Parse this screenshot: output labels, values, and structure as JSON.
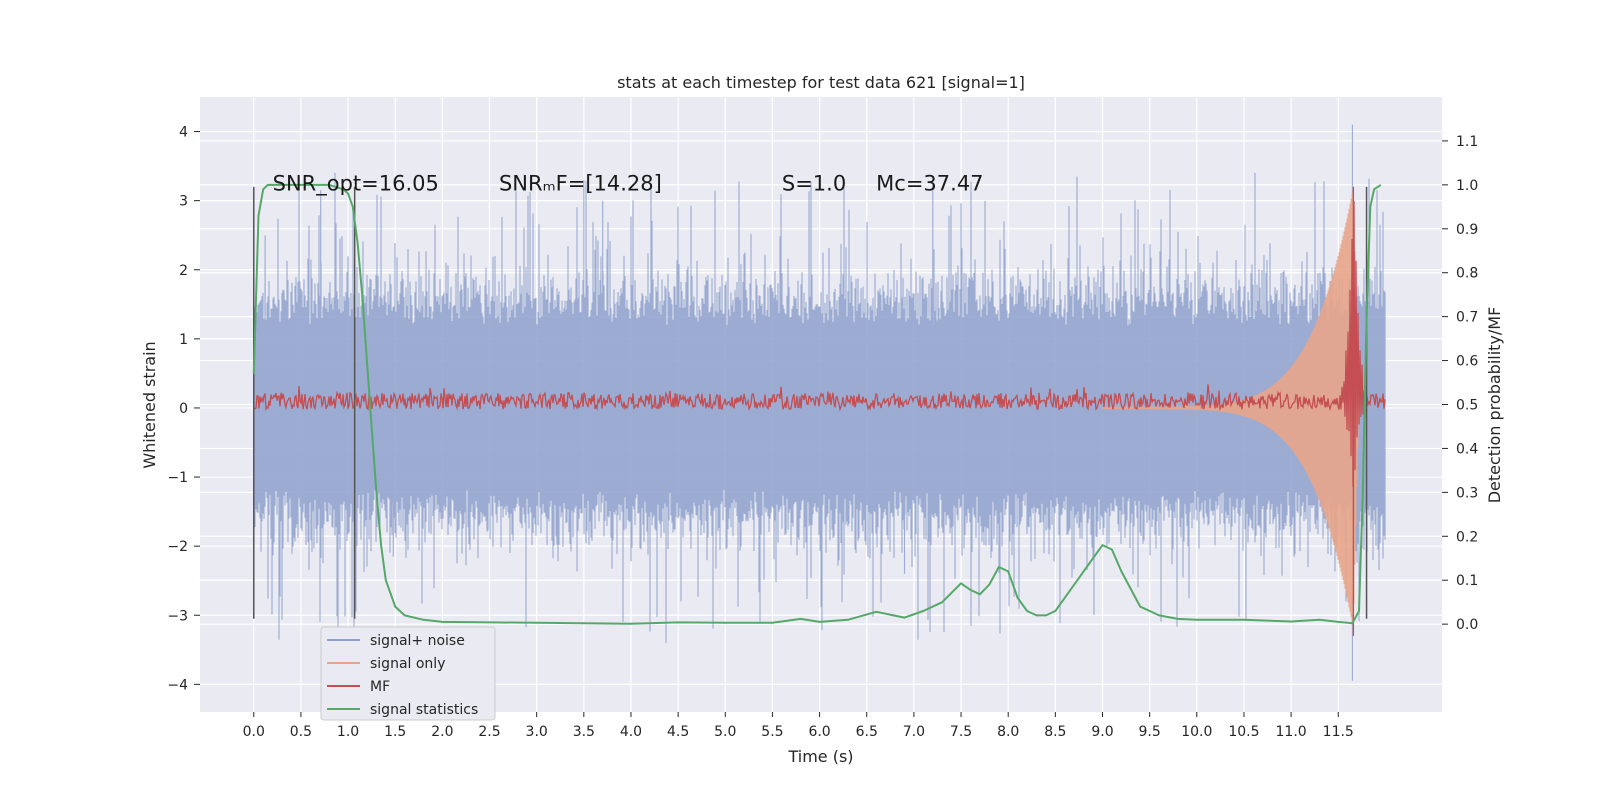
{
  "chart_data": {
    "type": "line",
    "title": "stats at each timestep for test data 621 [signal=1]",
    "xlabel": "Time (s)",
    "ylabel": "Whitened strain",
    "ylabel_right": "Detection probability/MF",
    "xlim": [
      -0.57,
      12.6
    ],
    "ylim": [
      -4.4,
      4.5
    ],
    "ylim_right": [
      -0.2,
      1.2
    ],
    "x_ticks": [
      0.0,
      0.5,
      1.0,
      1.5,
      2.0,
      2.5,
      3.0,
      3.5,
      4.0,
      4.5,
      5.0,
      5.5,
      6.0,
      6.5,
      7.0,
      7.5,
      8.0,
      8.5,
      9.0,
      9.5,
      10.0,
      10.5,
      11.0,
      11.5
    ],
    "x_tick_labels": [
      "0.0",
      "0.5",
      "1.0",
      "1.5",
      "2.0",
      "2.5",
      "3.0",
      "3.5",
      "4.0",
      "4.5",
      "5.0",
      "5.5",
      "6.0",
      "6.5",
      "7.0",
      "7.5",
      "8.0",
      "8.5",
      "9.0",
      "9.5",
      "10.0",
      "10.5",
      "11.0",
      "11.5"
    ],
    "y_ticks": [
      -4,
      -3,
      -2,
      -1,
      0,
      1,
      2,
      3,
      4
    ],
    "y_tick_labels": [
      "−4",
      "−3",
      "−2",
      "−1",
      "0",
      "1",
      "2",
      "3",
      "4"
    ],
    "y_right_ticks": [
      0.0,
      0.1,
      0.2,
      0.3,
      0.4,
      0.5,
      0.6,
      0.7,
      0.8,
      0.9,
      1.0,
      1.1
    ],
    "y_right_tick_labels": [
      "0.0",
      "0.1",
      "0.2",
      "0.3",
      "0.4",
      "0.5",
      "0.6",
      "0.7",
      "0.8",
      "0.9",
      "1.0",
      "1.1"
    ],
    "grid": true,
    "legend_position": "lower-left",
    "annotations": [
      {
        "text": "SNR_opt=16.05",
        "x": 0.2,
        "y": 3.15
      },
      {
        "text": "SNRₘF=[14.28]",
        "x": 2.6,
        "y": 3.15
      },
      {
        "text": "S=1.0",
        "x": 5.6,
        "y": 3.15
      },
      {
        "text": "Mᴄ=37.47",
        "x": 6.6,
        "y": 3.15
      }
    ],
    "vertical_markers": [
      {
        "x": 0.0,
        "ymin": -3.05,
        "ymax": 3.2
      },
      {
        "x": 1.07,
        "ymin": -3.05,
        "ymax": 3.2
      },
      {
        "x": 11.8,
        "ymin": -3.05,
        "ymax": 3.2
      }
    ],
    "series": [
      {
        "name": "signal+ noise",
        "color": "#8da0cb",
        "x_range": [
          0.0,
          12.0
        ],
        "core_amplitude": 1.3,
        "peak_amplitude": 3.4,
        "extreme_points": [
          [
            0.12,
            2.5
          ],
          [
            0.71,
            3.15
          ],
          [
            1.48,
            -2.15
          ],
          [
            3.5,
            3.3
          ],
          [
            3.7,
            3.0
          ],
          [
            6.9,
            -2.4
          ],
          [
            7.2,
            3.3
          ],
          [
            8.73,
            3.35
          ],
          [
            11.65,
            4.1
          ],
          [
            11.65,
            -3.95
          ]
        ]
      },
      {
        "name": "signal only",
        "color": "#e8a58a",
        "x_range": [
          9.0,
          11.72
        ],
        "amplitude_start": 0.02,
        "amplitude_peak": 3.2,
        "peak_x": 11.66
      },
      {
        "name": "MF",
        "color": "#c44e52",
        "x_range": [
          0.0,
          12.0
        ],
        "baseline": 0.1,
        "noise_amplitude": 0.12,
        "peak_x": 11.66,
        "peak_value": 3.2,
        "min_value": -3.3
      },
      {
        "name": "signal statistics",
        "color": "#55a868",
        "axis": "right",
        "x": [
          0.0,
          0.05,
          0.1,
          0.15,
          0.25,
          0.4,
          0.6,
          0.8,
          0.95,
          1.0,
          1.05,
          1.1,
          1.15,
          1.2,
          1.25,
          1.3,
          1.35,
          1.4,
          1.5,
          1.6,
          1.8,
          2.0,
          2.5,
          3.0,
          3.5,
          4.0,
          4.5,
          5.0,
          5.5,
          5.8,
          6.0,
          6.3,
          6.6,
          6.9,
          7.1,
          7.3,
          7.5,
          7.6,
          7.7,
          7.8,
          7.9,
          8.0,
          8.1,
          8.2,
          8.3,
          8.4,
          8.5,
          8.6,
          8.8,
          9.0,
          9.1,
          9.2,
          9.4,
          9.6,
          9.8,
          10.0,
          10.5,
          11.0,
          11.3,
          11.5,
          11.65,
          11.72,
          11.76,
          11.8,
          11.84,
          11.88,
          11.95
        ],
        "values": [
          0.57,
          0.93,
          0.99,
          1.0,
          1.0,
          1.0,
          1.0,
          1.0,
          0.99,
          0.98,
          0.95,
          0.87,
          0.75,
          0.6,
          0.45,
          0.3,
          0.18,
          0.1,
          0.04,
          0.02,
          0.01,
          0.005,
          0.004,
          0.003,
          0.002,
          0.001,
          0.004,
          0.003,
          0.003,
          0.012,
          0.005,
          0.01,
          0.028,
          0.015,
          0.03,
          0.05,
          0.093,
          0.078,
          0.068,
          0.09,
          0.13,
          0.12,
          0.06,
          0.03,
          0.02,
          0.02,
          0.03,
          0.06,
          0.12,
          0.18,
          0.17,
          0.12,
          0.04,
          0.02,
          0.012,
          0.01,
          0.01,
          0.006,
          0.01,
          0.005,
          0.002,
          0.03,
          0.3,
          0.7,
          0.95,
          0.99,
          1.0
        ]
      }
    ]
  }
}
